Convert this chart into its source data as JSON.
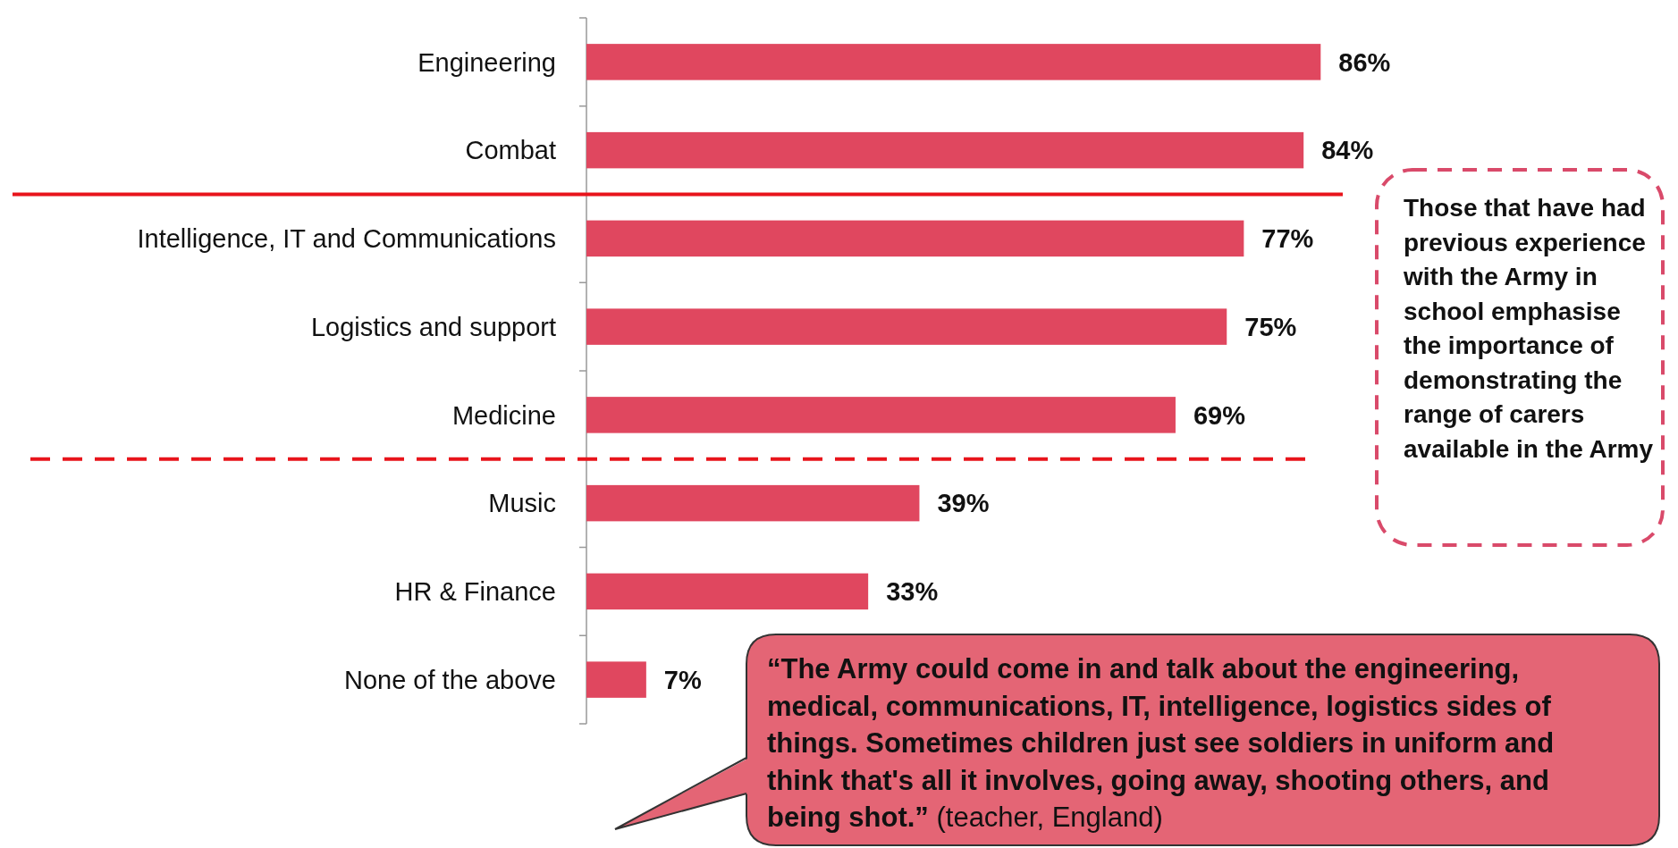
{
  "chart_data": {
    "type": "bar",
    "orientation": "horizontal",
    "categories": [
      "Engineering",
      "Combat",
      "Intelligence, IT and Communications",
      "Logistics and support",
      "Medicine",
      "Music",
      "HR & Finance",
      "None of the above"
    ],
    "values": [
      86,
      84,
      77,
      75,
      69,
      39,
      33,
      7
    ],
    "value_labels": [
      "86%",
      "84%",
      "77%",
      "75%",
      "69%",
      "39%",
      "33%",
      "7%"
    ],
    "color": "#e0475f",
    "annotations": [
      "Those that have had previous experience with the Army in school emphasise the importance of demonstrating the range of carers available in the Army",
      "“The Army could come in and talk about the engineering, medical, communications, IT, intelligence, logistics sides of things. Sometimes children just see soldiers in uniform and think that's all it involves, going away, shooting others, and being shot.”",
      "(teacher, England)"
    ]
  }
}
